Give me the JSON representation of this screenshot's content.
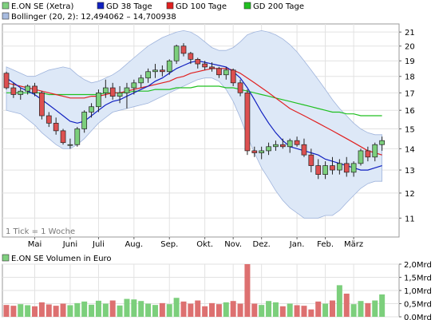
{
  "chart_data": [
    {
      "type": "candlestick",
      "legend": [
        {
          "label": "E.ON SE (Xetra)",
          "color": "#7fd07f"
        },
        {
          "label": "GD 38 Tage",
          "color": "#1020c0"
        },
        {
          "label": "GD 100 Tage",
          "color": "#e02020"
        },
        {
          "label": "GD 200 Tage",
          "color": "#20c020"
        },
        {
          "label": "Bollinger (20, 2): 12,494062 – 14,700938",
          "color": "#a8bce0"
        }
      ],
      "note": "1 Tick = 1 Woche",
      "x_tick_labels": [
        "Mai",
        "Juni",
        "Juli",
        "Aug.",
        "Sep.",
        "Okt.",
        "Nov.",
        "Dez.",
        "Jan.",
        "Feb.",
        "März"
      ],
      "x_tick_weeks": [
        4,
        9,
        13,
        18,
        23,
        28,
        32,
        36,
        41,
        45,
        49
      ],
      "y_scale": "log",
      "y_range": [
        10.3,
        21.6
      ],
      "y_ticks": [
        11,
        12,
        13,
        14,
        15,
        16,
        17,
        18,
        19,
        20,
        21
      ],
      "ohlc": [
        [
          18.2,
          18.3,
          17.2,
          17.3
        ],
        [
          17.3,
          17.6,
          16.7,
          16.9
        ],
        [
          16.9,
          17.3,
          16.6,
          17.1
        ],
        [
          17.1,
          17.5,
          16.9,
          17.4
        ],
        [
          17.4,
          17.6,
          16.8,
          17.0
        ],
        [
          17.0,
          17.1,
          15.5,
          15.7
        ],
        [
          15.7,
          15.9,
          15.1,
          15.3
        ],
        [
          15.3,
          15.6,
          14.7,
          14.9
        ],
        [
          14.9,
          15.0,
          14.2,
          14.3
        ],
        [
          14.2,
          14.5,
          14.0,
          14.2
        ],
        [
          14.2,
          15.1,
          14.1,
          15.0
        ],
        [
          15.0,
          16.0,
          14.8,
          15.9
        ],
        [
          15.9,
          16.4,
          15.6,
          16.2
        ],
        [
          16.2,
          17.2,
          15.9,
          17.0
        ],
        [
          17.0,
          17.8,
          16.7,
          17.3
        ],
        [
          17.3,
          17.6,
          16.6,
          16.8
        ],
        [
          16.8,
          17.4,
          16.4,
          17.0
        ],
        [
          17.0,
          17.6,
          16.1,
          17.3
        ],
        [
          17.3,
          17.8,
          16.9,
          17.6
        ],
        [
          17.6,
          18.1,
          17.3,
          17.9
        ],
        [
          17.9,
          18.5,
          17.6,
          18.3
        ],
        [
          18.3,
          18.8,
          17.9,
          18.4
        ],
        [
          18.4,
          18.7,
          18.0,
          18.3
        ],
        [
          18.3,
          19.1,
          18.1,
          19.0
        ],
        [
          19.0,
          20.1,
          18.8,
          20.0
        ],
        [
          20.0,
          20.2,
          19.3,
          19.5
        ],
        [
          19.5,
          19.6,
          18.8,
          19.1
        ],
        [
          19.1,
          19.2,
          18.5,
          18.8
        ],
        [
          18.8,
          19.0,
          18.4,
          18.6
        ],
        [
          18.6,
          18.9,
          18.3,
          18.5
        ],
        [
          18.5,
          18.6,
          17.9,
          18.1
        ],
        [
          18.1,
          18.6,
          17.8,
          18.4
        ],
        [
          18.4,
          18.5,
          17.4,
          17.6
        ],
        [
          17.6,
          17.8,
          16.8,
          17.0
        ],
        [
          17.0,
          17.2,
          13.7,
          13.9
        ],
        [
          13.9,
          14.1,
          13.6,
          13.8
        ],
        [
          13.8,
          14.1,
          13.5,
          13.9
        ],
        [
          13.9,
          14.3,
          13.7,
          14.1
        ],
        [
          14.1,
          14.4,
          13.9,
          14.2
        ],
        [
          14.2,
          14.5,
          14.0,
          14.1
        ],
        [
          14.1,
          14.5,
          13.8,
          14.4
        ],
        [
          14.4,
          14.6,
          14.1,
          14.2
        ],
        [
          14.2,
          14.5,
          13.6,
          13.7
        ],
        [
          13.7,
          14.0,
          12.9,
          13.2
        ],
        [
          13.2,
          13.5,
          12.6,
          12.8
        ],
        [
          12.8,
          13.4,
          12.6,
          13.2
        ],
        [
          13.2,
          13.6,
          12.8,
          13.0
        ],
        [
          13.0,
          13.5,
          12.8,
          13.3
        ],
        [
          13.3,
          13.6,
          12.7,
          12.9
        ],
        [
          12.9,
          13.4,
          12.7,
          13.3
        ],
        [
          13.3,
          14.0,
          13.2,
          13.9
        ],
        [
          13.9,
          14.1,
          13.4,
          13.6
        ],
        [
          13.6,
          14.3,
          13.4,
          14.2
        ],
        [
          14.2,
          14.6,
          13.9,
          14.4
        ]
      ],
      "sma38": [
        17.9,
        17.6,
        17.3,
        17.1,
        16.9,
        16.6,
        16.3,
        16.0,
        15.7,
        15.4,
        15.3,
        15.4,
        15.7,
        16.0,
        16.3,
        16.5,
        16.6,
        16.8,
        17.0,
        17.2,
        17.4,
        17.7,
        17.9,
        18.2,
        18.5,
        18.7,
        18.9,
        19.0,
        18.9,
        18.8,
        18.7,
        18.6,
        18.3,
        17.9,
        17.3,
        16.6,
        15.9,
        15.3,
        14.8,
        14.4,
        14.1,
        14.0,
        13.9,
        13.8,
        13.7,
        13.5,
        13.4,
        13.3,
        13.2,
        13.1,
        13.0,
        13.0,
        13.1,
        13.2
      ],
      "sma100": [
        17.6,
        17.5,
        17.4,
        17.3,
        17.2,
        17.1,
        17.0,
        16.9,
        16.8,
        16.7,
        16.7,
        16.7,
        16.8,
        16.8,
        16.9,
        17.0,
        17.0,
        17.1,
        17.2,
        17.3,
        17.4,
        17.5,
        17.6,
        17.7,
        17.9,
        18.0,
        18.2,
        18.3,
        18.4,
        18.5,
        18.5,
        18.5,
        18.4,
        18.2,
        17.9,
        17.6,
        17.3,
        17.0,
        16.7,
        16.4,
        16.1,
        15.9,
        15.7,
        15.5,
        15.3,
        15.1,
        14.9,
        14.7,
        14.5,
        14.3,
        14.1,
        13.9,
        13.8,
        13.7
      ],
      "sma200": [
        17.0,
        17.0,
        17.0,
        17.0,
        17.0,
        17.0,
        16.9,
        16.9,
        16.9,
        16.9,
        16.9,
        16.9,
        16.9,
        16.9,
        17.0,
        17.0,
        17.0,
        17.0,
        17.1,
        17.1,
        17.1,
        17.2,
        17.2,
        17.2,
        17.3,
        17.3,
        17.3,
        17.4,
        17.4,
        17.4,
        17.4,
        17.3,
        17.3,
        17.2,
        17.1,
        17.0,
        16.9,
        16.8,
        16.7,
        16.6,
        16.5,
        16.4,
        16.3,
        16.2,
        16.1,
        16.0,
        15.9,
        15.9,
        15.8,
        15.8,
        15.7,
        15.7,
        15.7,
        15.7
      ],
      "boll_upper": [
        18.6,
        18.4,
        18.2,
        18.0,
        18.0,
        18.2,
        18.4,
        18.5,
        18.6,
        18.5,
        18.1,
        17.8,
        17.6,
        17.7,
        17.9,
        18.1,
        18.4,
        18.8,
        19.2,
        19.6,
        20.0,
        20.3,
        20.6,
        20.8,
        21.0,
        21.1,
        21.0,
        20.7,
        20.3,
        19.9,
        19.7,
        19.7,
        19.9,
        20.3,
        20.8,
        21.0,
        21.1,
        21.0,
        20.8,
        20.5,
        20.1,
        19.6,
        19.0,
        18.4,
        17.8,
        17.2,
        16.6,
        16.1,
        15.7,
        15.3,
        15.0,
        14.8,
        14.7,
        14.7
      ],
      "boll_lower": [
        16.0,
        15.9,
        15.8,
        15.5,
        15.2,
        14.8,
        14.5,
        14.2,
        14.0,
        14.0,
        14.2,
        14.5,
        14.9,
        15.3,
        15.6,
        15.9,
        16.0,
        16.1,
        16.2,
        16.3,
        16.4,
        16.6,
        16.8,
        17.0,
        17.2,
        17.4,
        17.6,
        17.8,
        17.9,
        17.9,
        17.7,
        17.2,
        16.5,
        15.6,
        14.6,
        13.8,
        13.1,
        12.6,
        12.1,
        11.7,
        11.4,
        11.2,
        11.0,
        11.0,
        11.0,
        11.1,
        11.1,
        11.3,
        11.6,
        11.9,
        12.2,
        12.4,
        12.5,
        12.5
      ]
    },
    {
      "type": "bar",
      "title": "E.ON SE Volumen in Euro",
      "title_color": "#7fd07f",
      "y_range": [
        0,
        2.0
      ],
      "y_tick_values": [
        0,
        0.5,
        1.0,
        1.5,
        2.0
      ],
      "y_tick_labels": [
        "0,0Mrd",
        "0,5Mrd",
        "1,0Mrd",
        "1,5Mrd",
        "2,0Mrd"
      ],
      "up_color": "#7ccf7c",
      "down_color": "#dd7070",
      "values": [
        0.45,
        0.42,
        0.48,
        0.44,
        0.4,
        0.55,
        0.47,
        0.42,
        0.5,
        0.44,
        0.52,
        0.58,
        0.46,
        0.61,
        0.5,
        0.62,
        0.43,
        0.68,
        0.66,
        0.6,
        0.5,
        0.45,
        0.52,
        0.48,
        0.72,
        0.58,
        0.5,
        0.62,
        0.4,
        0.52,
        0.48,
        0.55,
        0.6,
        0.5,
        2.0,
        0.5,
        0.45,
        0.6,
        0.55,
        0.4,
        0.5,
        0.44,
        0.42,
        0.28,
        0.58,
        0.5,
        0.62,
        1.2,
        0.88,
        0.48,
        0.6,
        0.52,
        0.62,
        0.85
      ]
    }
  ]
}
